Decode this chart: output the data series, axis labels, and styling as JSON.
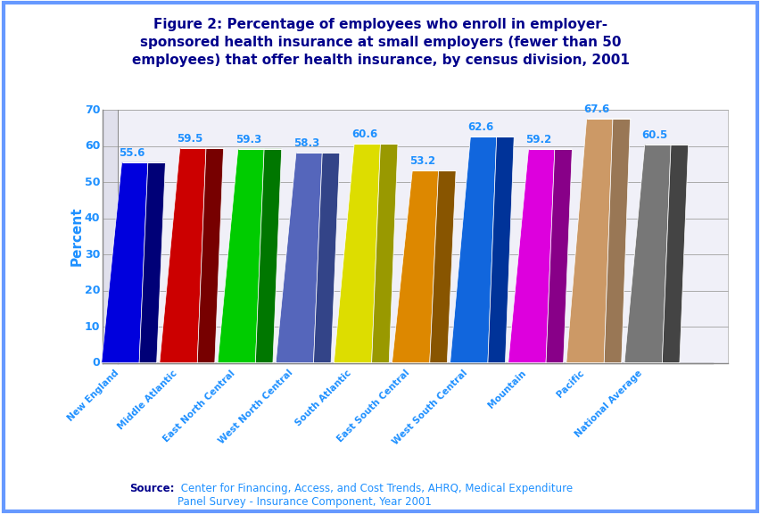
{
  "title": "Figure 2: Percentage of employees who enroll in employer-\nsponsored health insurance at small employers (fewer than 50\nemployees) that offer health insurance, by census division, 2001",
  "categories": [
    "New England",
    "Middle Atlantic",
    "East North Central",
    "West North Central",
    "South Atlantic",
    "East South Central",
    "West South Central",
    "Mountain",
    "Pacific",
    "National Average"
  ],
  "values": [
    55.6,
    59.5,
    59.3,
    58.3,
    60.6,
    53.2,
    62.6,
    59.2,
    67.6,
    60.5
  ],
  "bar_colors_front": [
    "#0000DD",
    "#CC0000",
    "#00CC00",
    "#5566BB",
    "#DDDD00",
    "#DD8800",
    "#1166DD",
    "#DD00DD",
    "#CC9966",
    "#777777"
  ],
  "bar_colors_side": [
    "#000077",
    "#770000",
    "#007700",
    "#334488",
    "#999900",
    "#885500",
    "#003399",
    "#880088",
    "#997755",
    "#444444"
  ],
  "bar_colors_top": [
    "#3333FF",
    "#FF3333",
    "#33FF33",
    "#7788CC",
    "#FFFF33",
    "#FFAA33",
    "#3388FF",
    "#FF33FF",
    "#DDBB99",
    "#999999"
  ],
  "ylabel": "Percent",
  "ylim": [
    0,
    70
  ],
  "yticks": [
    0,
    10,
    20,
    30,
    40,
    50,
    60,
    70
  ],
  "title_color": "#00008B",
  "label_color": "#1E90FF",
  "ylabel_color": "#1E90FF",
  "bg_color": "#FFFFFF",
  "border_color": "#6699FF",
  "source_bold": "Source:",
  "source_text": " Center for Financing, Access, and Cost Trends, AHRQ, Medical Expenditure\nPanel Survey - Insurance Component, Year 2001",
  "grid_color": "#AAAAAA",
  "wall_color": "#E0E0F0"
}
